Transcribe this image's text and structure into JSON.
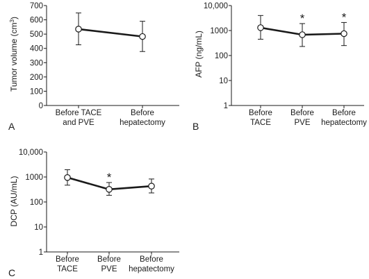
{
  "chart_data": [
    {
      "type": "line",
      "panel_label": "A",
      "ylabel": "Tumor volume (cm",
      "ylabel_sup": "3",
      "ylabel_close": ")",
      "scale": "linear",
      "ylim": [
        0,
        700
      ],
      "yticks": [
        "0",
        "100",
        "200",
        "300",
        "400",
        "500",
        "600",
        "700"
      ],
      "ytick_values": [
        0,
        100,
        200,
        300,
        400,
        500,
        600,
        700
      ],
      "categories": [
        [
          "Before TACE",
          "and PVE"
        ],
        [
          "Before",
          "hepatectomy"
        ]
      ],
      "values": [
        535,
        483
      ],
      "err_low": [
        425,
        378
      ],
      "err_high": [
        648,
        590
      ],
      "significant": [
        false,
        false
      ],
      "significance_mark": "*"
    },
    {
      "type": "line",
      "panel_label": "B",
      "ylabel": "AFP (ng/mL)",
      "scale": "log",
      "ylim": [
        1,
        10000
      ],
      "yticks": [
        "1",
        "10",
        "100",
        "1000",
        "10,000"
      ],
      "ytick_values": [
        1,
        10,
        100,
        1000,
        10000
      ],
      "categories": [
        [
          "Before",
          "TACE"
        ],
        [
          "Before",
          "PVE"
        ],
        [
          "Before",
          "hepatectomy"
        ]
      ],
      "values": [
        1300,
        680,
        750
      ],
      "err_low": [
        450,
        230,
        250
      ],
      "err_high": [
        4000,
        1900,
        2100
      ],
      "significant": [
        false,
        true,
        true
      ],
      "significance_mark": "*"
    },
    {
      "type": "line",
      "panel_label": "C",
      "ylabel": "DCP (AU/mL)",
      "scale": "log",
      "ylim": [
        1,
        10000
      ],
      "yticks": [
        "1",
        "10",
        "100",
        "1000",
        "10,000"
      ],
      "ytick_values": [
        1,
        10,
        100,
        1000,
        10000
      ],
      "categories": [
        [
          "Before",
          "TACE"
        ],
        [
          "Before",
          "PVE"
        ],
        [
          "Before",
          "hepatectomy"
        ]
      ],
      "values": [
        950,
        320,
        430
      ],
      "err_low": [
        470,
        185,
        230
      ],
      "err_high": [
        1950,
        600,
        830
      ],
      "significant": [
        false,
        true,
        false
      ],
      "significance_mark": "*"
    }
  ]
}
